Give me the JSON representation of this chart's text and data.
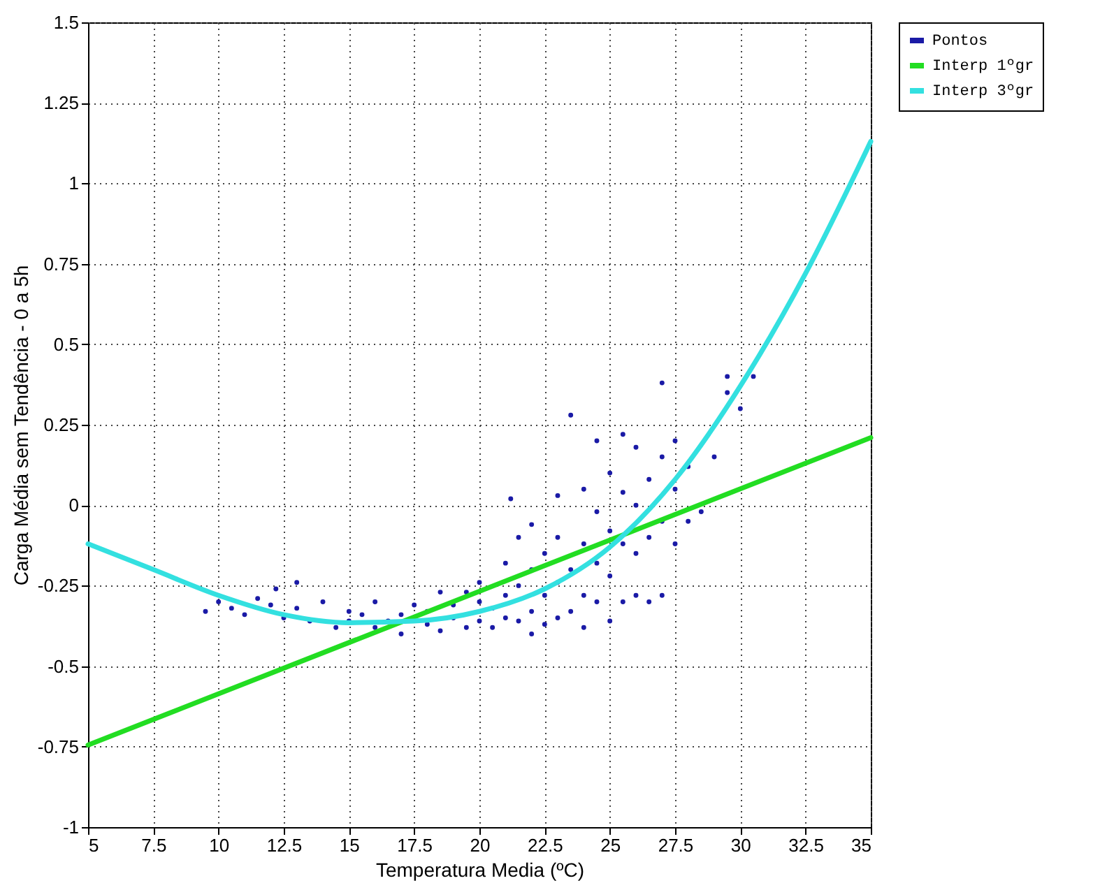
{
  "chart_data": {
    "type": "scatter",
    "xlabel": "Temperatura Media (ºC)",
    "ylabel": "Carga Média sem Tendência - 0 a 5h",
    "xlim": [
      5,
      35
    ],
    "xticks": [
      5,
      7.5,
      10,
      12.5,
      15,
      17.5,
      20,
      22.5,
      25,
      27.5,
      30,
      32.5,
      35
    ],
    "ylim": [
      -1,
      1.5
    ],
    "yticks": [
      -1,
      -0.75,
      -0.5,
      -0.25,
      0,
      0.25,
      0.5,
      0.75,
      1,
      1.25,
      1.5
    ],
    "grid": true,
    "legend": "right",
    "series": [
      {
        "name": "Pontos",
        "marker": "circle",
        "color": "#1a1aa6",
        "x": [
          9.5,
          10,
          10.5,
          11,
          11.5,
          12,
          12.2,
          12.5,
          13,
          13,
          13.5,
          14,
          14.5,
          15,
          15,
          15.5,
          16,
          16,
          16.5,
          17,
          17,
          17.5,
          18,
          18,
          18.5,
          18.5,
          19,
          19,
          19.5,
          19.5,
          20,
          20,
          20,
          20.5,
          20.5,
          21,
          21,
          21,
          21.2,
          21.5,
          21.5,
          21.5,
          22,
          22,
          22,
          22,
          22.5,
          22.5,
          22.5,
          23,
          23,
          23,
          23,
          23.5,
          23.5,
          23.5,
          24,
          24,
          24,
          24,
          24.5,
          24.5,
          24.5,
          24.5,
          25,
          25,
          25,
          25,
          25.5,
          25.5,
          25.5,
          25.5,
          26,
          26,
          26,
          26,
          26.5,
          26.5,
          26.5,
          27,
          27,
          27,
          27,
          27.5,
          27.5,
          27.5,
          28,
          28,
          28.5,
          29,
          29.5,
          29.5,
          30,
          30.5
        ],
        "values": [
          -0.33,
          -0.3,
          -0.32,
          -0.34,
          -0.29,
          -0.31,
          -0.26,
          -0.35,
          -0.24,
          -0.32,
          -0.36,
          -0.3,
          -0.38,
          -0.33,
          -0.36,
          -0.34,
          -0.38,
          -0.3,
          -0.36,
          -0.34,
          -0.4,
          -0.31,
          -0.37,
          -0.33,
          -0.39,
          -0.27,
          -0.35,
          -0.31,
          -0.38,
          -0.27,
          -0.36,
          -0.3,
          -0.24,
          -0.38,
          -0.32,
          -0.35,
          -0.28,
          -0.18,
          0.02,
          -0.36,
          -0.25,
          -0.1,
          -0.4,
          -0.33,
          -0.2,
          -0.06,
          -0.37,
          -0.28,
          -0.15,
          -0.35,
          -0.24,
          -0.1,
          0.03,
          -0.33,
          -0.2,
          0.28,
          -0.38,
          -0.28,
          -0.12,
          0.05,
          -0.3,
          -0.18,
          -0.02,
          0.2,
          -0.36,
          -0.22,
          -0.08,
          0.1,
          -0.3,
          -0.12,
          0.04,
          0.22,
          -0.28,
          -0.15,
          0,
          0.18,
          -0.3,
          -0.1,
          0.08,
          -0.28,
          -0.05,
          0.15,
          0.38,
          -0.12,
          0.05,
          0.2,
          -0.05,
          0.12,
          -0.02,
          0.15,
          0.35,
          0.4,
          0.3,
          0.4
        ]
      },
      {
        "name": "Interp 1ºgr",
        "type": "line",
        "color": "#22dd22",
        "x": [
          5,
          35
        ],
        "values": [
          -0.745,
          0.21
        ]
      },
      {
        "name": "Interp 3ºgr",
        "type": "line",
        "color": "#33e0e0",
        "x": [
          5,
          7.5,
          10,
          12.5,
          15,
          17.5,
          20,
          22.5,
          25,
          27.5,
          30,
          32.5,
          35
        ],
        "values": [
          -0.12,
          -0.2,
          -0.28,
          -0.34,
          -0.365,
          -0.36,
          -0.33,
          -0.26,
          -0.13,
          0.08,
          0.37,
          0.72,
          1.13
        ]
      }
    ]
  }
}
